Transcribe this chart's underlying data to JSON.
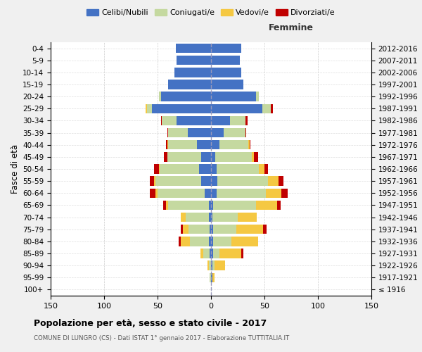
{
  "age_groups": [
    "100+",
    "95-99",
    "90-94",
    "85-89",
    "80-84",
    "75-79",
    "70-74",
    "65-69",
    "60-64",
    "55-59",
    "50-54",
    "45-49",
    "40-44",
    "35-39",
    "30-34",
    "25-29",
    "20-24",
    "15-19",
    "10-14",
    "5-9",
    "0-4"
  ],
  "birth_years": [
    "≤ 1916",
    "1917-1921",
    "1922-1926",
    "1927-1931",
    "1932-1936",
    "1937-1941",
    "1942-1946",
    "1947-1951",
    "1952-1956",
    "1957-1961",
    "1962-1966",
    "1967-1971",
    "1972-1976",
    "1977-1981",
    "1982-1986",
    "1987-1991",
    "1992-1996",
    "1997-2001",
    "2002-2006",
    "2007-2011",
    "2012-2016"
  ],
  "male_celibe": [
    0,
    0,
    0,
    1,
    2,
    1,
    2,
    2,
    6,
    9,
    11,
    9,
    13,
    22,
    32,
    55,
    47,
    40,
    34,
    32,
    33
  ],
  "male_coniugato": [
    0,
    1,
    2,
    6,
    18,
    20,
    22,
    38,
    44,
    43,
    37,
    32,
    27,
    18,
    14,
    5,
    2,
    0,
    0,
    0,
    0
  ],
  "male_vedovo": [
    0,
    0,
    1,
    3,
    8,
    5,
    4,
    2,
    2,
    1,
    1,
    0,
    1,
    0,
    0,
    1,
    0,
    0,
    0,
    0,
    0
  ],
  "male_divorziato": [
    0,
    0,
    0,
    0,
    2,
    2,
    0,
    3,
    5,
    4,
    4,
    3,
    1,
    1,
    1,
    0,
    0,
    0,
    0,
    0,
    0
  ],
  "female_celibe": [
    0,
    1,
    1,
    2,
    2,
    2,
    1,
    2,
    5,
    6,
    5,
    4,
    8,
    12,
    18,
    48,
    42,
    30,
    28,
    27,
    28
  ],
  "female_coniugata": [
    0,
    0,
    2,
    6,
    17,
    22,
    24,
    40,
    46,
    47,
    40,
    34,
    27,
    20,
    14,
    8,
    3,
    0,
    0,
    0,
    0
  ],
  "female_vedova": [
    0,
    2,
    10,
    20,
    25,
    25,
    18,
    20,
    15,
    10,
    5,
    2,
    1,
    0,
    0,
    0,
    0,
    0,
    0,
    0,
    0
  ],
  "female_divorziata": [
    0,
    0,
    0,
    2,
    0,
    3,
    0,
    3,
    6,
    5,
    3,
    4,
    1,
    1,
    2,
    2,
    0,
    0,
    0,
    0,
    0
  ],
  "color_celibe": "#4472c4",
  "color_coniugato": "#c5d9a0",
  "color_vedovo": "#f5c842",
  "color_divorziato": "#c00000",
  "title": "Popolazione per età, sesso e stato civile - 2017",
  "subtitle": "COMUNE DI LUNGRO (CS) - Dati ISTAT 1° gennaio 2017 - Elaborazione TUTTITALIA.IT",
  "label_femmine": "Femmine",
  "ylabel_left": "Fasce di età",
  "legend_labels": [
    "Celibi/Nubili",
    "Coniugati/e",
    "Vedovi/e",
    "Divorziati/e"
  ],
  "xlim": 150,
  "bg_color": "#f0f0f0",
  "plot_bg": "#ffffff"
}
